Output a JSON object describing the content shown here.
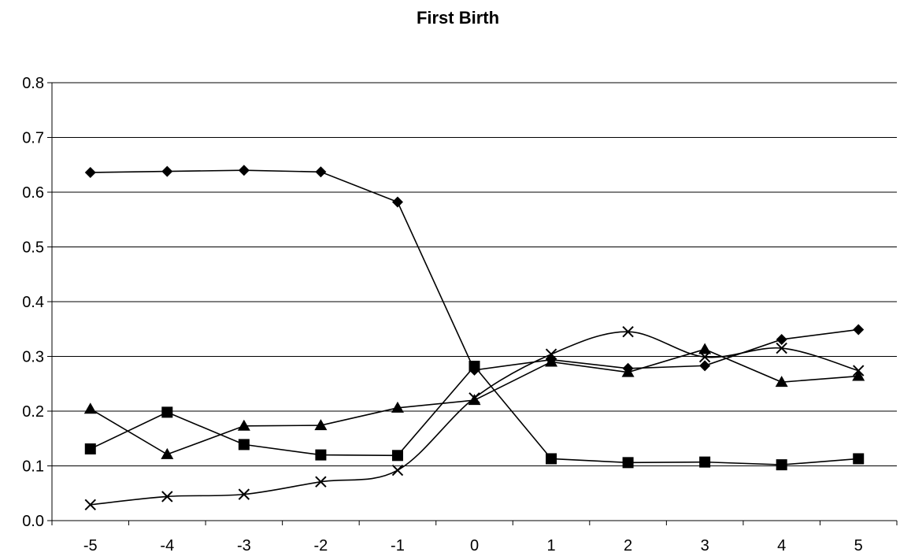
{
  "chart_data": {
    "type": "line",
    "title": "First Birth",
    "xlabel": "",
    "ylabel": "",
    "categories": [
      "-5",
      "-4",
      "-3",
      "-2",
      "-1",
      "0",
      "1",
      "2",
      "3",
      "4",
      "5"
    ],
    "ylim": [
      0,
      0.8
    ],
    "yticks": [
      "0.0",
      "0.1",
      "0.2",
      "0.3",
      "0.4",
      "0.5",
      "0.6",
      "0.7",
      "0.8"
    ],
    "grid": "horizontal",
    "legend": "none",
    "series": [
      {
        "marker": "diamond",
        "smooth": false,
        "values": [
          0.636,
          0.638,
          0.64,
          0.637,
          0.582,
          0.275,
          0.294,
          0.278,
          0.283,
          0.331,
          0.349
        ]
      },
      {
        "marker": "square",
        "smooth": false,
        "values": [
          0.131,
          0.198,
          0.139,
          0.12,
          0.119,
          0.282,
          0.113,
          0.106,
          0.107,
          0.102,
          0.113
        ]
      },
      {
        "marker": "triangle",
        "smooth": false,
        "values": [
          0.204,
          0.121,
          0.173,
          0.174,
          0.206,
          0.22,
          0.29,
          0.271,
          0.313,
          0.253,
          0.264
        ]
      },
      {
        "marker": "x",
        "smooth": true,
        "values": [
          0.029,
          0.044,
          0.048,
          0.071,
          0.092,
          0.224,
          0.304,
          0.345,
          0.299,
          0.315,
          0.274
        ]
      }
    ]
  }
}
